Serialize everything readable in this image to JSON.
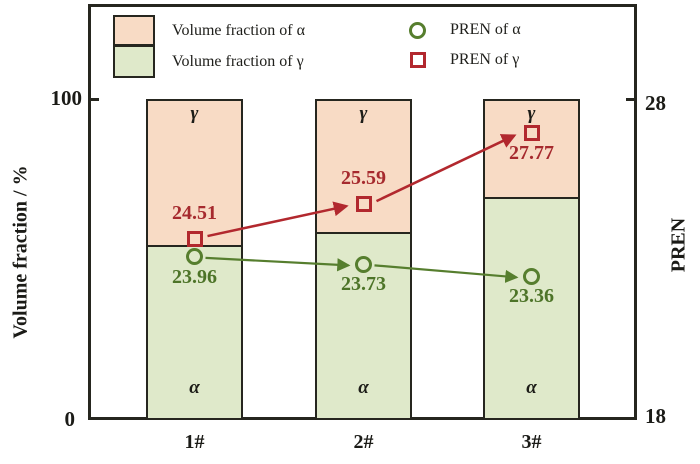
{
  "legend": {
    "items": [
      {
        "label": "Volume fraction of α",
        "swatch": "pink"
      },
      {
        "label": "Volume fraction of γ",
        "swatch": "green"
      },
      {
        "label": "PREN of α",
        "marker": "circle-green"
      },
      {
        "label": "PREN of γ",
        "marker": "square-red"
      }
    ]
  },
  "axes": {
    "left": {
      "title": "Volume fraction / %",
      "top_tick": "100",
      "bottom_tick": "0"
    },
    "right": {
      "title": "PREN",
      "top_tick": "28",
      "bottom_tick": "18"
    },
    "x": {
      "labels": [
        "1#",
        "2#",
        "3#"
      ]
    }
  },
  "colors": {
    "alpha_fill_pink": "#f8dbc5",
    "gamma_fill_green": "#dfe9ca",
    "pren_alpha_green": "#567e2e",
    "pren_gamma_red": "#b2282e",
    "frame": "#26261f"
  },
  "chart_data": {
    "type": "bar",
    "subtype": "stacked-percent-with-point-series",
    "categories": [
      "1#",
      "2#",
      "3#"
    ],
    "series": [
      {
        "name": "Volume fraction of γ",
        "segment": "bottom-green",
        "in_bar_label": "α",
        "values": [
          54,
          58,
          69
        ]
      },
      {
        "name": "Volume fraction of α",
        "segment": "top-pink",
        "in_bar_label": "γ",
        "values": [
          46,
          42,
          31
        ]
      }
    ],
    "point_series": [
      {
        "name": "PREN of α",
        "marker": "circle",
        "color": "#567e2e",
        "values": [
          23.96,
          23.73,
          23.36
        ]
      },
      {
        "name": "PREN of γ",
        "marker": "square",
        "color": "#b2282e",
        "values": [
          24.51,
          25.59,
          27.77
        ]
      }
    ],
    "left_axis": {
      "label": "Volume fraction / %",
      "range": [
        0,
        100
      ],
      "ticks": [
        0,
        100
      ]
    },
    "right_axis": {
      "label": "PREN",
      "range": [
        18,
        28
      ],
      "ticks": [
        18,
        28
      ]
    },
    "legend_position": "top-inside",
    "grid": false
  }
}
